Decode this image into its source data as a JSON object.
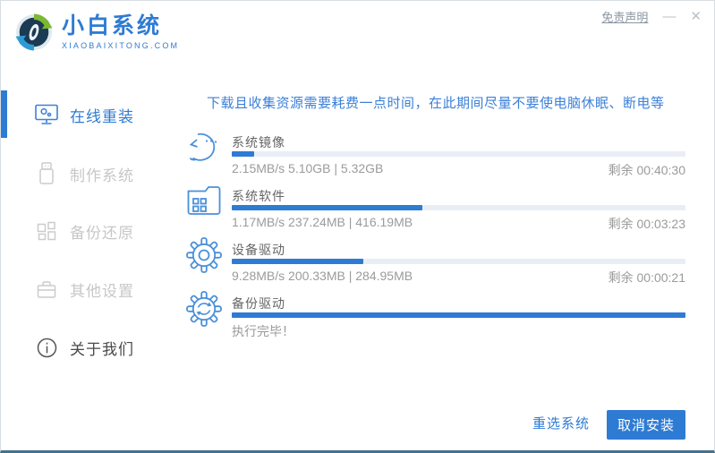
{
  "titlebar": {
    "disclaimer_label": "免责声明",
    "minimize_glyph": "—",
    "close_glyph": "✕"
  },
  "brand": {
    "name": "小白系统",
    "domain": "XIAOBAIXITONG.COM"
  },
  "sidebar": {
    "items": [
      {
        "label": "在线重装",
        "icon": "monitor-icon",
        "active": true
      },
      {
        "label": "制作系统",
        "icon": "usb-icon",
        "active": false
      },
      {
        "label": "备份还原",
        "icon": "grid-icon",
        "active": false
      },
      {
        "label": "其他设置",
        "icon": "toolbox-icon",
        "active": false
      },
      {
        "label": "关于我们",
        "icon": "info-icon",
        "active": false
      }
    ]
  },
  "main": {
    "notice": "下载且收集资源需要耗费一点时间，在此期间尽量不要使电脑休眠、断电等",
    "tasks": [
      {
        "title": "系统镜像",
        "icon": "mascot-face-icon",
        "progress_percent": 5,
        "stats": "2.15MB/s 5.10GB | 5.32GB",
        "remaining": "剩余 00:40:30"
      },
      {
        "title": "系统软件",
        "icon": "folder-apps-icon",
        "progress_percent": 42,
        "stats": "1.17MB/s 237.24MB | 416.19MB",
        "remaining": "剩余 00:03:23"
      },
      {
        "title": "设备驱动",
        "icon": "gear-icon",
        "progress_percent": 29,
        "stats": "9.28MB/s 200.33MB | 284.95MB",
        "remaining": "剩余 00:00:21"
      },
      {
        "title": "备份驱动",
        "icon": "gear-sync-icon",
        "progress_percent": 100,
        "stats": "执行完毕！",
        "remaining": ""
      }
    ]
  },
  "footer": {
    "reselect_label": "重选系统",
    "cancel_label": "取消安装"
  },
  "colors": {
    "accent": "#2e7bd4",
    "notice_text": "#3c80d8",
    "bar_track": "#e9eef6",
    "dim_text": "#9b9b9b",
    "sidebar_dim": "#c7c7c7",
    "bottom_border": "#44708f",
    "logo_green": "#7cb832",
    "logo_blue": "#2e9bd6",
    "logo_navy": "#1b3a54"
  }
}
